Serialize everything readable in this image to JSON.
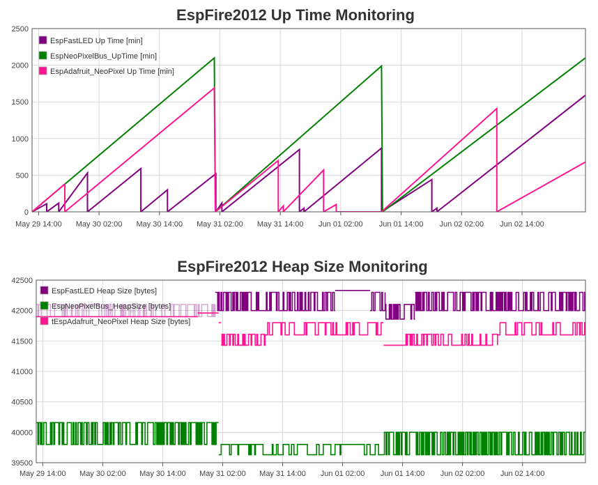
{
  "colors": {
    "fastled": "#800080",
    "neopixelbus": "#008000",
    "adafruit": "#ff1493"
  },
  "chart_data": [
    {
      "type": "line",
      "title": "EspFire2012 Up Time Monitoring",
      "xlabel": "",
      "ylabel": "",
      "ylim": [
        0,
        2500
      ],
      "yticks": [
        "0",
        "500",
        "1000",
        "1500",
        "2000",
        "2500"
      ],
      "xlim": [
        -1.3,
        108.6
      ],
      "xtick_positions": [
        0,
        12,
        24,
        36,
        48,
        60,
        72,
        84,
        96
      ],
      "xticks": [
        "May 29 14:00",
        "May 30 02:00",
        "May 30 14:00",
        "May 31 02:00",
        "May 31 14:00",
        "Jun 01 02:00",
        "Jun 01 14:00",
        "Jun 02 02:00",
        "Jun 02 14:00"
      ],
      "legend_position": "top-left",
      "grid": true,
      "series": [
        {
          "name": "EspFastLED Up Time [min]",
          "color": "#800080",
          "points": [
            [
              -1.3,
              0
            ],
            [
              1.6,
              110
            ],
            [
              1.6,
              0
            ],
            [
              4,
              120
            ],
            [
              4,
              0
            ],
            [
              9.7,
              530
            ],
            [
              9.7,
              0
            ],
            [
              20.3,
              590
            ],
            [
              20.3,
              0
            ],
            [
              25.6,
              300
            ],
            [
              25.6,
              0
            ],
            [
              35.2,
              520
            ],
            [
              35.2,
              0
            ],
            [
              36.4,
              120
            ],
            [
              36.4,
              0
            ],
            [
              51.8,
              850
            ],
            [
              51.8,
              0
            ],
            [
              52.7,
              50
            ],
            [
              52.7,
              0
            ],
            [
              68.1,
              870
            ],
            [
              68.1,
              0
            ],
            [
              78.1,
              440
            ],
            [
              78.1,
              0
            ],
            [
              79.1,
              50
            ],
            [
              79.1,
              0
            ],
            [
              108.6,
              1590
            ]
          ]
        },
        {
          "name": "EspNeoPixelBus_UpTime [min]",
          "color": "#008000",
          "points": [
            [
              -1.3,
              0
            ],
            [
              34.9,
              2100
            ],
            [
              35.1,
              0
            ],
            [
              68.1,
              1990
            ],
            [
              68.3,
              0
            ],
            [
              108.6,
              2100
            ]
          ]
        },
        {
          "name": "EspAdafruit_NeoPixel Up Time [min]",
          "color": "#ff1493",
          "points": [
            [
              -1.3,
              0
            ],
            [
              5.2,
              380
            ],
            [
              5.2,
              0
            ],
            [
              34.9,
              1690
            ],
            [
              35.1,
              0
            ],
            [
              47.6,
              700
            ],
            [
              47.6,
              0
            ],
            [
              48.6,
              80
            ],
            [
              48.6,
              0
            ],
            [
              56.6,
              570
            ],
            [
              56.6,
              0
            ],
            [
              59.1,
              100
            ],
            [
              59.1,
              0
            ],
            [
              68.1,
              0
            ],
            [
              91,
              1410
            ],
            [
              91,
              0
            ],
            [
              108.6,
              680
            ]
          ]
        }
      ]
    },
    {
      "type": "line",
      "title": "EspFire2012 Heap Size Monitoring",
      "xlabel": "",
      "ylabel": "",
      "ylim": [
        39500,
        42500
      ],
      "yticks": [
        "39500",
        "40000",
        "40500",
        "41000",
        "41500",
        "42000",
        "42500"
      ],
      "xlim": [
        -1.3,
        108.6
      ],
      "xtick_positions": [
        0,
        12,
        24,
        36,
        48,
        60,
        72,
        84,
        96
      ],
      "xticks": [
        "May 29 14:00",
        "May 30 02:00",
        "May 30 14:00",
        "May 31 02:00",
        "May 31 14:00",
        "Jun 01 02:00",
        "Jun 01 14:00",
        "Jun 02 02:00",
        "Jun 02 14:00"
      ],
      "legend_position": "top-left",
      "grid": true,
      "series": [
        {
          "name": "EspFastLED Heap Size [bytes]",
          "color": "#800080",
          "segments": [
            {
              "x0": -1.3,
              "x1": 34.5,
              "base": 41900,
              "high": 42100,
              "noise": 0.35,
              "faded": true
            },
            {
              "x0": 34.5,
              "x1": 58.5,
              "base": 42000,
              "high": 42300,
              "noise": 0.55
            },
            {
              "x0": 58.5,
              "x1": 65.5,
              "base": 42330,
              "high": 42330,
              "noise": 0
            },
            {
              "x0": 65.5,
              "x1": 68.5,
              "base": 42000,
              "high": 42300,
              "noise": 0.55
            },
            {
              "x0": 68.5,
              "x1": 74.5,
              "base": 41860,
              "high": 42100,
              "noise": 0.5
            },
            {
              "x0": 74.5,
              "x1": 108.6,
              "base": 42000,
              "high": 42300,
              "noise": 0.55
            }
          ]
        },
        {
          "name": "EspNeoPixelBus_HeapSize [bytes]",
          "color": "#008000",
          "segments": [
            {
              "x0": -1.3,
              "x1": 35.2,
              "base": 39800,
              "high": 40160,
              "noise": 0.5
            },
            {
              "x0": 35.2,
              "x1": 68.2,
              "base": 39630,
              "high": 39800,
              "noise": 0.12
            },
            {
              "x0": 68.2,
              "x1": 108.6,
              "base": 39630,
              "high": 40000,
              "noise": 0.6
            }
          ]
        },
        {
          "name": "tEspAdafruit_NeoPixel Heap Size [bytes]",
          "color": "#ff1493",
          "segments": [
            {
              "x0": -1.3,
              "x1": 31,
              "base": 41900,
              "high": 41900,
              "noise": 0
            },
            {
              "x0": 31,
              "x1": 35.2,
              "base": 41960,
              "high": 41960,
              "noise": 0
            },
            {
              "x0": 35.2,
              "x1": 35.7,
              "base": 41800,
              "high": 41800,
              "noise": 0
            },
            {
              "x0": 35.7,
              "x1": 44.5,
              "base": 41430,
              "high": 41610,
              "noise": 0.4
            },
            {
              "x0": 44.5,
              "x1": 68.2,
              "base": 41600,
              "high": 41800,
              "noise": 0.2
            },
            {
              "x0": 68.2,
              "x1": 71.5,
              "base": 41430,
              "high": 41430,
              "noise": 0
            },
            {
              "x0": 71.5,
              "x1": 91,
              "base": 41430,
              "high": 41610,
              "noise": 0.3
            },
            {
              "x0": 91,
              "x1": 108.6,
              "base": 41600,
              "high": 41800,
              "noise": 0.25
            }
          ]
        }
      ]
    }
  ]
}
